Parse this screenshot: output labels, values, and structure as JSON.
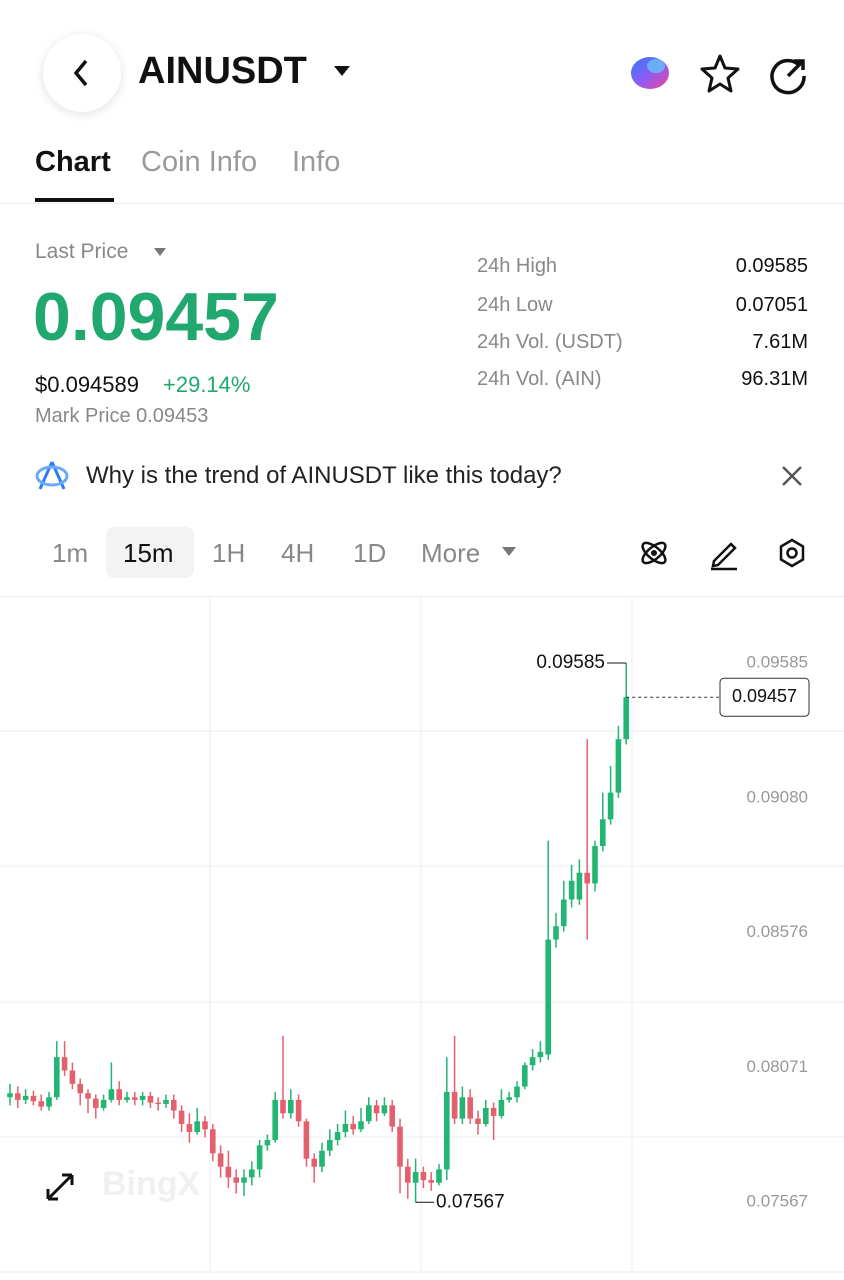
{
  "header": {
    "symbol": "AINUSDT"
  },
  "tabs": [
    "Chart",
    "Coin Info",
    "Info"
  ],
  "price": {
    "label": "Last Price",
    "last": "0.09457",
    "usd": "$0.094589",
    "change": "+29.14%",
    "mark": "Mark Price 0.09453"
  },
  "stats": [
    [
      "24h High",
      "0.09585"
    ],
    [
      "24h Low",
      "0.07051"
    ],
    [
      "24h Vol. (USDT)",
      "7.61M"
    ],
    [
      "24h Vol. (AIN)",
      "96.31M"
    ]
  ],
  "banner": "Why is the trend of AINUSDT like this today?",
  "intervals": [
    "1m",
    "15m",
    "1H",
    "4H",
    "1D",
    "More"
  ],
  "watermark": "BingX",
  "chart": {
    "type": "candlestick",
    "up_color": "#22b573",
    "down_color": "#e5606e",
    "ylim": [
      0.07306,
      0.09832
    ],
    "yticks": [
      0.09585,
      {
        "value": 0.0908,
        "label": "0.09080"
      },
      0.08576,
      0.08071,
      0.07567
    ],
    "high_marker": 0.09585,
    "low_marker": 0.07567,
    "last_price": 0.09457,
    "candles": [
      [
        0.0796,
        0.0801,
        0.0793,
        0.07975
      ],
      [
        0.07975,
        0.08,
        0.0792,
        0.0795
      ],
      [
        0.0795,
        0.0799,
        0.07935,
        0.07965
      ],
      [
        0.07965,
        0.07985,
        0.0793,
        0.07945
      ],
      [
        0.07945,
        0.0797,
        0.0791,
        0.07925
      ],
      [
        0.07925,
        0.0798,
        0.0791,
        0.0796
      ],
      [
        0.0796,
        0.0817,
        0.0795,
        0.0811
      ],
      [
        0.0811,
        0.0817,
        0.0804,
        0.0806
      ],
      [
        0.0806,
        0.0809,
        0.0799,
        0.0801
      ],
      [
        0.0801,
        0.0803,
        0.0793,
        0.07975
      ],
      [
        0.07975,
        0.0799,
        0.079,
        0.07955
      ],
      [
        0.07955,
        0.0797,
        0.0788,
        0.0792
      ],
      [
        0.0792,
        0.0797,
        0.0791,
        0.0795
      ],
      [
        0.0795,
        0.0809,
        0.0794,
        0.0799
      ],
      [
        0.0799,
        0.0802,
        0.0793,
        0.0795
      ],
      [
        0.0795,
        0.0798,
        0.0794,
        0.0796
      ],
      [
        0.0796,
        0.0798,
        0.0793,
        0.0795
      ],
      [
        0.0795,
        0.0798,
        0.0793,
        0.07965
      ],
      [
        0.07965,
        0.0798,
        0.0792,
        0.0794
      ],
      [
        0.0794,
        0.0796,
        0.0791,
        0.07935
      ],
      [
        0.07935,
        0.0797,
        0.0792,
        0.0795
      ],
      [
        0.0795,
        0.0797,
        0.0788,
        0.0791
      ],
      [
        0.0791,
        0.0793,
        0.0783,
        0.0786
      ],
      [
        0.0786,
        0.079,
        0.0779,
        0.0783
      ],
      [
        0.0783,
        0.0792,
        0.0782,
        0.0787
      ],
      [
        0.0787,
        0.0789,
        0.0781,
        0.0784
      ],
      [
        0.0784,
        0.0786,
        0.0772,
        0.0775
      ],
      [
        0.0775,
        0.0778,
        0.0766,
        0.077
      ],
      [
        0.077,
        0.0776,
        0.0762,
        0.0766
      ],
      [
        0.0766,
        0.0769,
        0.076,
        0.0764
      ],
      [
        0.0764,
        0.0769,
        0.0759,
        0.0766
      ],
      [
        0.0766,
        0.0772,
        0.0763,
        0.0769
      ],
      [
        0.0769,
        0.078,
        0.0766,
        0.0778
      ],
      [
        0.0778,
        0.0782,
        0.0776,
        0.078
      ],
      [
        0.078,
        0.0798,
        0.0779,
        0.0795
      ],
      [
        0.0795,
        0.0819,
        0.0788,
        0.079
      ],
      [
        0.079,
        0.0799,
        0.0788,
        0.0795
      ],
      [
        0.0795,
        0.0797,
        0.0785,
        0.0787
      ],
      [
        0.0787,
        0.0788,
        0.077,
        0.0773
      ],
      [
        0.0773,
        0.0775,
        0.0764,
        0.077
      ],
      [
        0.077,
        0.0779,
        0.0768,
        0.0776
      ],
      [
        0.0776,
        0.0784,
        0.0774,
        0.078
      ],
      [
        0.078,
        0.0786,
        0.0778,
        0.0783
      ],
      [
        0.0783,
        0.0791,
        0.0781,
        0.0786
      ],
      [
        0.0786,
        0.0789,
        0.0782,
        0.0784
      ],
      [
        0.0784,
        0.0792,
        0.0783,
        0.0787
      ],
      [
        0.0787,
        0.0796,
        0.0786,
        0.0793
      ],
      [
        0.0793,
        0.0795,
        0.0787,
        0.079
      ],
      [
        0.079,
        0.0796,
        0.0789,
        0.0793
      ],
      [
        0.0793,
        0.0795,
        0.0783,
        0.0785
      ],
      [
        0.0785,
        0.0788,
        0.076,
        0.077
      ],
      [
        0.077,
        0.0773,
        0.0758,
        0.0764
      ],
      [
        0.0764,
        0.0773,
        0.07567,
        0.0768
      ],
      [
        0.0768,
        0.077,
        0.0762,
        0.0765
      ],
      [
        0.0765,
        0.0768,
        0.0761,
        0.0764
      ],
      [
        0.0764,
        0.0771,
        0.0763,
        0.0769
      ],
      [
        0.0769,
        0.0811,
        0.0765,
        0.0798
      ],
      [
        0.0798,
        0.0819,
        0.0786,
        0.0788
      ],
      [
        0.0788,
        0.08,
        0.0786,
        0.0796
      ],
      [
        0.0796,
        0.0799,
        0.0786,
        0.0788
      ],
      [
        0.0788,
        0.0791,
        0.0782,
        0.0786
      ],
      [
        0.0786,
        0.0795,
        0.0785,
        0.0792
      ],
      [
        0.0792,
        0.0794,
        0.078,
        0.0789
      ],
      [
        0.0789,
        0.0799,
        0.0788,
        0.0795
      ],
      [
        0.0795,
        0.0798,
        0.0794,
        0.0796
      ],
      [
        0.0796,
        0.0802,
        0.0794,
        0.08
      ],
      [
        0.08,
        0.0809,
        0.0799,
        0.0808
      ],
      [
        0.0808,
        0.0814,
        0.0806,
        0.0811
      ],
      [
        0.0811,
        0.0817,
        0.0809,
        0.0813
      ],
      [
        0.0812,
        0.0892,
        0.081,
        0.0855
      ],
      [
        0.0855,
        0.0865,
        0.0852,
        0.086
      ],
      [
        0.086,
        0.0877,
        0.0858,
        0.087
      ],
      [
        0.087,
        0.0883,
        0.0867,
        0.0877
      ],
      [
        0.087,
        0.0885,
        0.0868,
        0.088
      ],
      [
        0.088,
        0.093,
        0.0855,
        0.0876
      ],
      [
        0.0876,
        0.0892,
        0.0873,
        0.089
      ],
      [
        0.089,
        0.091,
        0.0888,
        0.09
      ],
      [
        0.09,
        0.092,
        0.0898,
        0.091
      ],
      [
        0.091,
        0.0935,
        0.0908,
        0.093
      ],
      [
        0.093,
        0.09585,
        0.0928,
        0.09457
      ]
    ]
  }
}
